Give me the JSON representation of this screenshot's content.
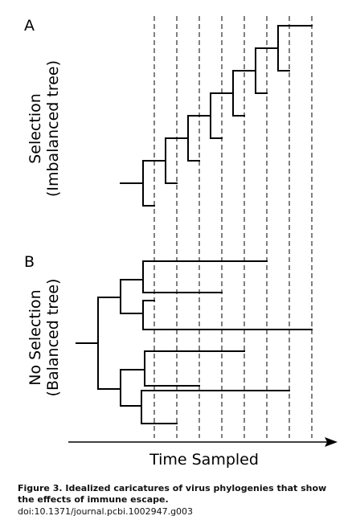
{
  "panels": [
    {
      "letter": "A",
      "label_lines": [
        "Selection",
        "(Imbalanced tree)"
      ]
    },
    {
      "letter": "B",
      "label_lines": [
        "No Selection",
        "(Balanced tree)"
      ]
    }
  ],
  "x_axis_label": "Time Sampled",
  "caption": {
    "lines": [
      "Figure 3. Idealized caricatures of virus phylogenies that show",
      "the effects of immune escape."
    ],
    "doi": "doi:10.1371/journal.pcbi.1002947.g003"
  }
}
